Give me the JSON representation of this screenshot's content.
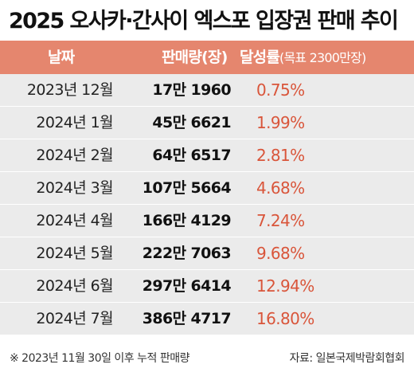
{
  "title": "2025 오사카·간사이 엑스포 입장권 판매 추이",
  "header": {
    "date": "날짜",
    "sales": "판매량(장)",
    "rate": "달성률",
    "rate_note": "(목표 2300만장)"
  },
  "rows": [
    {
      "date": "2023년 12월",
      "sales": "17만 1960",
      "rate": "0.75%"
    },
    {
      "date": "2024년 1월",
      "sales": "45만 6621",
      "rate": "1.99%"
    },
    {
      "date": "2024년 2월",
      "sales": "64만 6517",
      "rate": "2.81%"
    },
    {
      "date": "2024년 3월",
      "sales": "107만 5664",
      "rate": "4.68%"
    },
    {
      "date": "2024년 4월",
      "sales": "166만 4129",
      "rate": "7.24%"
    },
    {
      "date": "2024년 5월",
      "sales": "222만 7063",
      "rate": "9.68%"
    },
    {
      "date": "2024년 6월",
      "sales": "297만 6414",
      "rate": "12.94%"
    },
    {
      "date": "2024년 7월",
      "sales": "386만 4717",
      "rate": "16.80%"
    }
  ],
  "footer": {
    "note": "※ 2023년 11월 30일 이후 누적 판매량",
    "source": "자료: 일본국제박람회협회"
  },
  "colors": {
    "header_bg": "#e5866e",
    "row_bg": "#ebebeb",
    "rate_text": "#d9553a"
  }
}
